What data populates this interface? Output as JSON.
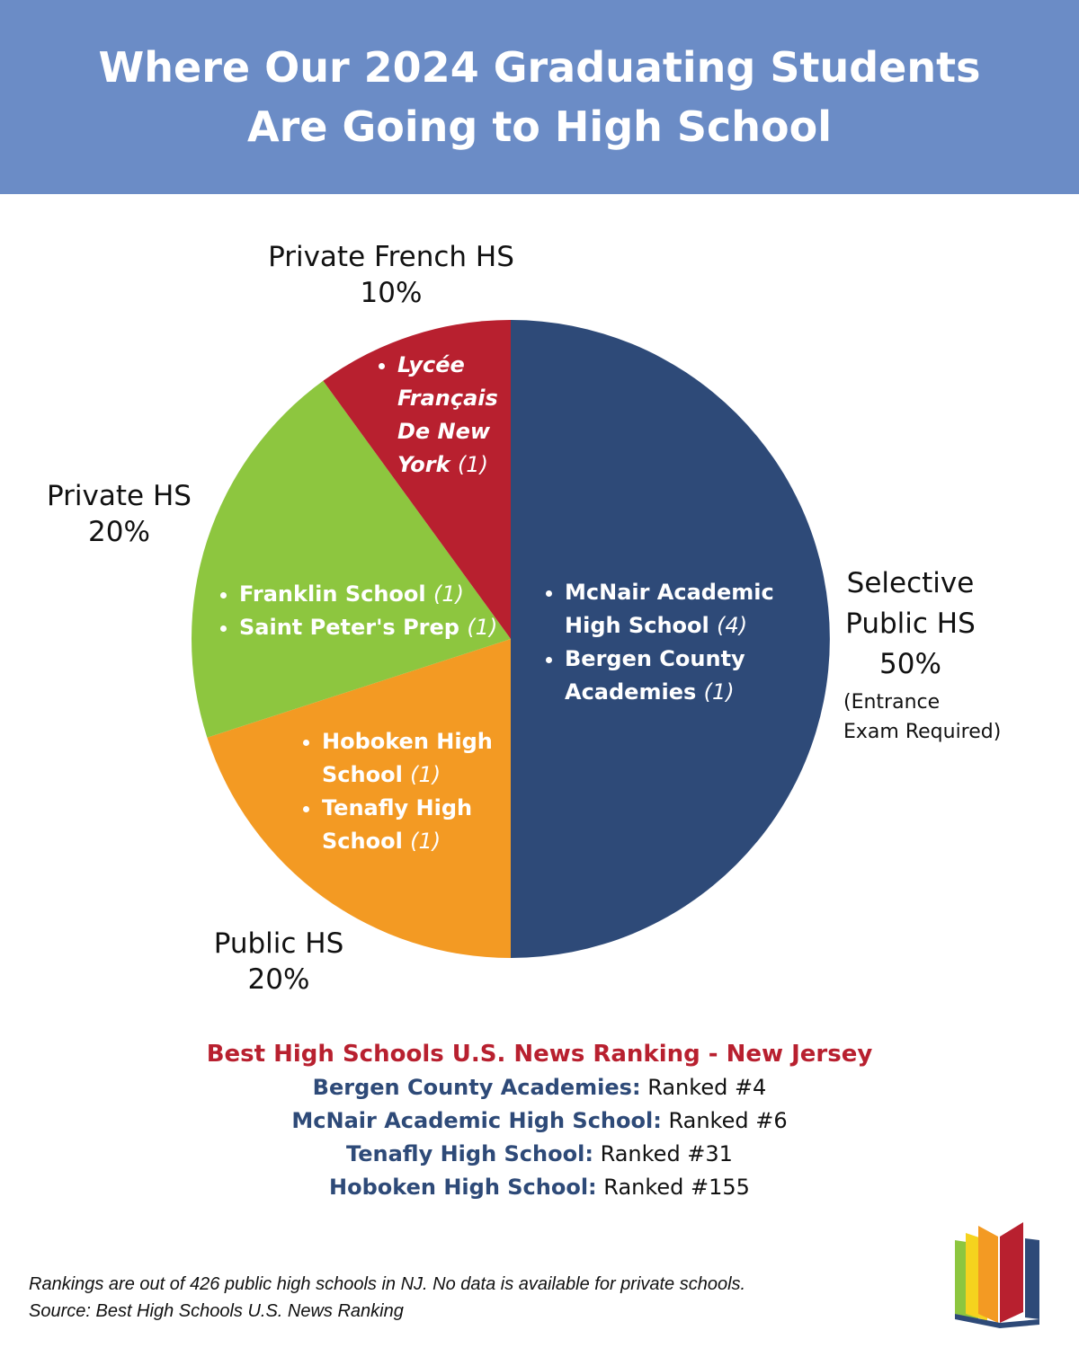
{
  "header": {
    "title_line1": "Where Our 2024 Graduating Students",
    "title_line2": "Are Going to High School"
  },
  "chart_data": {
    "type": "pie",
    "slices": [
      {
        "label_line1": "Selective",
        "label_line2": "Public HS",
        "percent_text": "50%",
        "value": 50,
        "color": "#2e4a78",
        "note_line1": "(Entrance",
        "note_line2": "Exam Required)",
        "schools": [
          {
            "name_line1": "McNair Academic",
            "name_line2": "High School",
            "count": "(4)"
          },
          {
            "name_line1": "Bergen County",
            "name_line2": "Academies",
            "count": "(1)"
          }
        ]
      },
      {
        "label": "Public HS",
        "percent_text": "20%",
        "value": 20,
        "color": "#f39a23",
        "schools": [
          {
            "name_line1": "Hoboken High",
            "name_line2": "School",
            "count": "(1)"
          },
          {
            "name_line1": "Tenafly High",
            "name_line2": "School",
            "count": "(1)"
          }
        ]
      },
      {
        "label": "Private HS",
        "percent_text": "20%",
        "value": 20,
        "color": "#8dc63f",
        "schools": [
          {
            "name": "Franklin School",
            "count": "(1)"
          },
          {
            "name": "Saint Peter's Prep",
            "count": "(1)"
          }
        ]
      },
      {
        "label": "Private French HS",
        "percent_text": "10%",
        "value": 10,
        "color": "#b8202f",
        "schools": [
          {
            "line1": "Lycée",
            "line2": "Français",
            "line3": "De New",
            "line4": "York",
            "count": "(1)"
          }
        ]
      }
    ]
  },
  "ranking": {
    "heading": "Best High Schools U.S. News Ranking - New Jersey",
    "items": [
      {
        "name": "Bergen County Academies:",
        "rank": "Ranked #4"
      },
      {
        "name": "McNair Academic High School:",
        "rank": "Ranked #6"
      },
      {
        "name": "Tenafly High School:",
        "rank": "Ranked #31"
      },
      {
        "name": "Hoboken High School:",
        "rank": "Ranked #155"
      }
    ]
  },
  "footer": {
    "line1": "Rankings are out of 426 public high schools in NJ. No data is available for private schools.",
    "line2": "Source: Best High Schools U.S. News Ranking"
  },
  "logo": {
    "icon": "book-icon",
    "colors": [
      "#8dc63f",
      "#f5d31e",
      "#f39a23",
      "#b8202f",
      "#2e4a78"
    ]
  }
}
